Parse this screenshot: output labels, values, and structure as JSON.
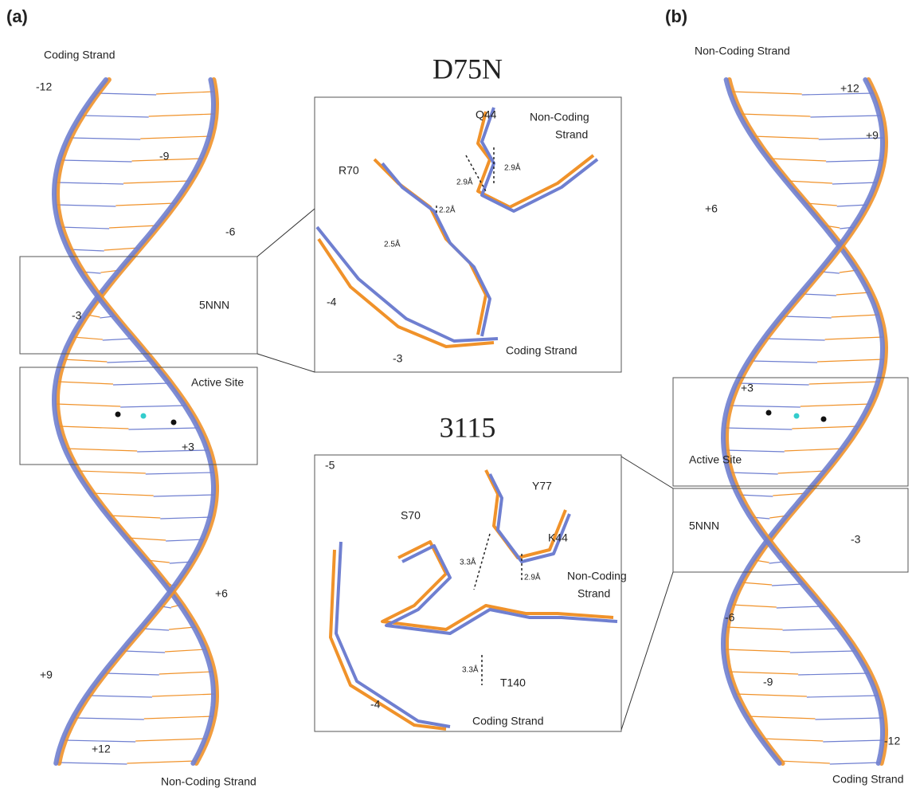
{
  "panel_a": {
    "label": "(a)",
    "top_strand": "Coding Strand",
    "bottom_strand": "Non-Coding Strand",
    "positions": [
      "-12",
      "-9",
      "-6",
      "-3",
      "+3",
      "+6",
      "+9",
      "+12"
    ],
    "box_top": "5NNN",
    "box_bottom": "Active Site"
  },
  "panel_b": {
    "label": "(b)",
    "top_strand": "Non-Coding Strand",
    "bottom_strand": "Coding Strand",
    "positions": [
      "+12",
      "+9",
      "+6",
      "+3",
      "-3",
      "-6",
      "-9",
      "-12"
    ],
    "box_top": "Active Site",
    "box_bottom": "5NNN"
  },
  "inset_top": {
    "title": "D75N",
    "residues": [
      "Q44",
      "R70"
    ],
    "strand_upper": [
      "Non-Coding",
      "Strand"
    ],
    "strand_lower": "Coding Strand",
    "distances": [
      "2.9Å",
      "2.9Å",
      "2.2Å",
      "2.5Å"
    ],
    "positions": [
      "-4",
      "-3"
    ]
  },
  "inset_bottom": {
    "title": "3115",
    "residues": [
      "Y77",
      "S70",
      "K44",
      "T140"
    ],
    "strand_upper": [
      "Non-Coding",
      "Strand"
    ],
    "strand_lower": "Coding Strand",
    "distances": [
      "3.3Å",
      "2.9Å",
      "3.3Å"
    ],
    "positions": [
      "-5",
      "-4"
    ]
  }
}
